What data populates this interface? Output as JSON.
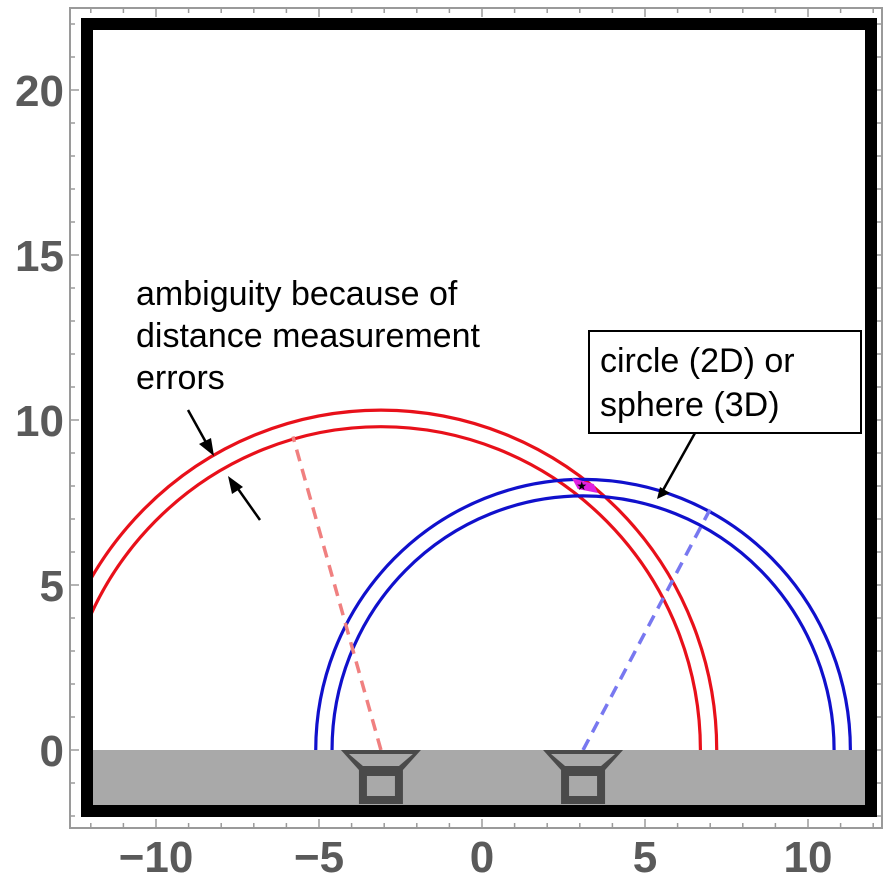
{
  "chart_data": {
    "type": "diagram",
    "xlim": [
      -12.2,
      12.2
    ],
    "ylim": [
      -2.2,
      22.2
    ],
    "x_ticks": [
      {
        "value": -10,
        "label": "−10"
      },
      {
        "value": -5,
        "label": "−5"
      },
      {
        "value": 0,
        "label": "0"
      },
      {
        "value": 5,
        "label": "5"
      },
      {
        "value": 10,
        "label": "10"
      }
    ],
    "y_ticks": [
      {
        "value": 0,
        "label": "0"
      },
      {
        "value": 5,
        "label": "5"
      },
      {
        "value": 10,
        "label": "10"
      },
      {
        "value": 15,
        "label": "15"
      },
      {
        "value": 20,
        "label": "20"
      }
    ],
    "ground": {
      "y_top": 0,
      "y_bottom": -1.7,
      "color": "#a9a9a9"
    },
    "sensors": [
      {
        "x": -3.1,
        "y": 0,
        "color": "#4a4a4a"
      },
      {
        "x": 3.1,
        "y": 0,
        "color": "#4a4a4a"
      }
    ],
    "circle_pairs": [
      {
        "name": "red",
        "color": "#e8101a",
        "center": [
          -3.1,
          0
        ],
        "radii": [
          9.8,
          10.3
        ],
        "dashed_radius_to": [
          -5.8,
          9.5
        ],
        "dash_color": "#f08080"
      },
      {
        "name": "blue",
        "color": "#1010cc",
        "center": [
          3.1,
          0
        ],
        "radii": [
          7.7,
          8.2
        ],
        "dashed_radius_to": [
          7.0,
          7.3
        ],
        "dash_color": "#7878f0"
      }
    ],
    "intersection": {
      "x": 3.0,
      "y": 8.0,
      "fill": "#e020e0"
    },
    "annotations": {
      "ambiguity": [
        "ambiguity because of",
        "distance measurement",
        "errors"
      ],
      "circle_box": [
        "circle (2D) or",
        "sphere (3D)"
      ]
    }
  }
}
